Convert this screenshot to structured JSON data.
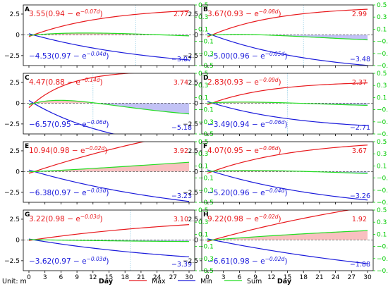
{
  "colors": {
    "max": "#e8191d",
    "min": "#1a1adb",
    "sum": "#22dd22",
    "max_fill": "#f9c0c0",
    "min_fill": "#c2c2f5",
    "right_axis": "#00cc00",
    "zero_line": "#555555",
    "cross_line": "#9ad0e6"
  },
  "unit_label": "Unit: m",
  "xlabel": "Day",
  "legend": [
    {
      "key": "max",
      "label": "Max"
    },
    {
      "key": "min",
      "label": "Min"
    },
    {
      "key": "sum",
      "label": "Sum"
    }
  ],
  "chart_data": [
    {
      "type": "line",
      "panel": "A",
      "max_eq": "3.55(0.94 − e",
      "max_exp": "−0.07d",
      "max_end_label": "2.77",
      "min_eq": "−4.53(0.97 − e",
      "min_exp": "−0.04d",
      "min_end_label": "−3.07",
      "max_params": [
        3.55,
        0.94,
        0.07
      ],
      "min_params": [
        -4.53,
        0.97,
        0.04
      ],
      "cross_day": 20,
      "x": [
        0,
        30
      ],
      "ylim_left": [
        -3.7,
        3.6
      ],
      "ylim_right": [
        -0.5,
        0.5
      ],
      "xticks": [
        "0",
        "3",
        "6",
        "9",
        "12",
        "15",
        "18",
        "21",
        "24",
        "27",
        "30"
      ],
      "yticks_left": [
        "2.5",
        "0",
        "−2.5"
      ],
      "yticks_right": [
        "0.5",
        "0.3",
        "0.1",
        "−0.1",
        "−0.3",
        "−0.5"
      ]
    },
    {
      "type": "line",
      "panel": "B",
      "max_eq": "3.67(0.93 − e",
      "max_exp": "−0.08d",
      "max_end_label": "2.99",
      "min_eq": "−5.00(0.96 − e",
      "min_exp": "−0.05d",
      "min_end_label": "−3.48",
      "max_params": [
        3.67,
        0.93,
        0.08
      ],
      "min_params": [
        -5.0,
        0.96,
        0.05
      ],
      "cross_day": 18,
      "x": [
        0,
        30
      ],
      "ylim_left": [
        -3.7,
        3.6
      ],
      "ylim_right": [
        -0.5,
        0.5
      ],
      "xticks": [
        "0",
        "3",
        "6",
        "9",
        "12",
        "15",
        "18",
        "21",
        "24",
        "27",
        "30"
      ],
      "yticks_left": [
        "2.5",
        "0",
        "−2.5"
      ],
      "yticks_right": [
        "0.5",
        "0.3",
        "0.1",
        "−0.1",
        "−0.3",
        "−0.5"
      ]
    },
    {
      "type": "line",
      "panel": "C",
      "max_eq": "4.47(0.88 − e",
      "max_exp": "−0.14d",
      "max_end_label": "3.74",
      "min_eq": "−6.57(0.95 − e",
      "min_exp": "−0.06d",
      "min_end_label": "−5.18",
      "max_params": [
        4.47,
        0.88,
        0.14
      ],
      "min_params": [
        -6.57,
        0.95,
        0.06
      ],
      "cross_day": 12,
      "x": [
        0,
        30
      ],
      "ylim_left": [
        -3.7,
        3.6
      ],
      "ylim_right": [
        -0.5,
        0.5
      ],
      "xticks": [
        "0",
        "3",
        "6",
        "9",
        "12",
        "15",
        "18",
        "21",
        "24",
        "27",
        "30"
      ],
      "yticks_left": [
        "2.5",
        "0",
        "−2.5"
      ],
      "yticks_right": [
        "0.5",
        "0.3",
        "0.1",
        "−0.1",
        "−0.3",
        "−0.5"
      ]
    },
    {
      "type": "line",
      "panel": "D",
      "max_eq": "2.83(0.93 − e",
      "max_exp": "−0.09d",
      "max_end_label": "2.37",
      "min_eq": "−3.49(0.94 − e",
      "min_exp": "−0.06d",
      "min_end_label": "−2.71",
      "max_params": [
        2.83,
        0.93,
        0.09
      ],
      "min_params": [
        -3.49,
        0.94,
        0.06
      ],
      "cross_day": 15,
      "x": [
        0,
        30
      ],
      "ylim_left": [
        -3.7,
        3.6
      ],
      "ylim_right": [
        -0.5,
        0.5
      ],
      "xticks": [
        "0",
        "3",
        "6",
        "9",
        "12",
        "15",
        "18",
        "21",
        "24",
        "27",
        "30"
      ],
      "yticks_left": [
        "2.5",
        "0",
        "−2.5"
      ],
      "yticks_right": [
        "0.5",
        "0.3",
        "0.1",
        "−0.1",
        "−0.3",
        "−0.5"
      ]
    },
    {
      "type": "line",
      "panel": "E",
      "max_eq": "10.94(0.98 − e",
      "max_exp": "−0.02d",
      "max_end_label": "3.92",
      "min_eq": "−6.38(0.97 − e",
      "min_exp": "−0.03d",
      "min_end_label": "−3.23",
      "max_params": [
        10.94,
        0.98,
        0.02
      ],
      "min_params": [
        -6.38,
        0.97,
        0.03
      ],
      "cross_day": null,
      "x": [
        0,
        30
      ],
      "ylim_left": [
        -3.7,
        3.6
      ],
      "ylim_right": [
        -0.5,
        0.5
      ],
      "xticks": [
        "0",
        "3",
        "6",
        "9",
        "12",
        "15",
        "18",
        "21",
        "24",
        "27",
        "30"
      ],
      "yticks_left": [
        "2.5",
        "0",
        "−2.5"
      ],
      "yticks_right": [
        "0.5",
        "0.3",
        "0.1",
        "−0.1",
        "−0.3",
        "−0.5"
      ]
    },
    {
      "type": "line",
      "panel": "F",
      "max_eq": "4.07(0.95 − e",
      "max_exp": "−0.06d",
      "max_end_label": "3.67",
      "min_eq": "−5.20(0.96 − e",
      "min_exp": "−0.04d",
      "min_end_label": "−3.26",
      "max_params": [
        4.07,
        0.95,
        0.06
      ],
      "min_params": [
        -5.2,
        0.96,
        0.04
      ],
      "cross_day": null,
      "x": [
        0,
        30
      ],
      "ylim_left": [
        -3.7,
        3.6
      ],
      "ylim_right": [
        -0.5,
        0.5
      ],
      "xticks": [
        "0",
        "3",
        "6",
        "9",
        "12",
        "15",
        "18",
        "21",
        "24",
        "27",
        "30"
      ],
      "yticks_left": [
        "2.5",
        "0",
        "−2.5"
      ],
      "yticks_right": [
        "0.5",
        "0.3",
        "0.1",
        "−0.1",
        "−0.3",
        "−0.5"
      ]
    },
    {
      "type": "line",
      "panel": "G",
      "max_eq": "3.22(0.98 − e",
      "max_exp": "−0.03d",
      "max_end_label": "3.10",
      "min_eq": "−3.62(0.97 − e",
      "min_exp": "−0.03d",
      "min_end_label": "−3.39",
      "max_params": [
        3.22,
        0.98,
        0.03
      ],
      "min_params": [
        -3.62,
        0.97,
        0.03
      ],
      "cross_day": 19,
      "x": [
        0,
        30
      ],
      "ylim_left": [
        -3.7,
        3.6
      ],
      "ylim_right": [
        -0.5,
        0.5
      ],
      "xticks": [
        "0",
        "3",
        "6",
        "9",
        "12",
        "15",
        "18",
        "21",
        "24",
        "27",
        "30"
      ],
      "yticks_left": [
        "2.5",
        "0",
        "−2.5"
      ],
      "yticks_right": [
        "0.5",
        "0.3",
        "0.1",
        "−0.1",
        "−0.3",
        "−0.5"
      ]
    },
    {
      "type": "line",
      "panel": "H",
      "max_eq": "9.22(0.98 − e",
      "max_exp": "−0.02d",
      "max_end_label": "1.92",
      "min_eq": "−6.61(0.98 − e",
      "min_exp": "−0.02d",
      "min_end_label": "−1.88",
      "max_params": [
        9.22,
        0.98,
        0.02
      ],
      "min_params": [
        -6.61,
        0.98,
        0.02
      ],
      "cross_day": null,
      "x": [
        0,
        30
      ],
      "ylim_left": [
        -3.7,
        3.6
      ],
      "ylim_right": [
        -0.5,
        0.5
      ],
      "xticks": [
        "0",
        "3",
        "6",
        "9",
        "12",
        "15",
        "18",
        "21",
        "24",
        "27",
        "30"
      ],
      "yticks_left": [
        "2.5",
        "0",
        "−2.5"
      ],
      "yticks_right": [
        "0.5",
        "0.3",
        "0.1",
        "−0.1",
        "−0.3",
        "−0.5"
      ]
    }
  ]
}
